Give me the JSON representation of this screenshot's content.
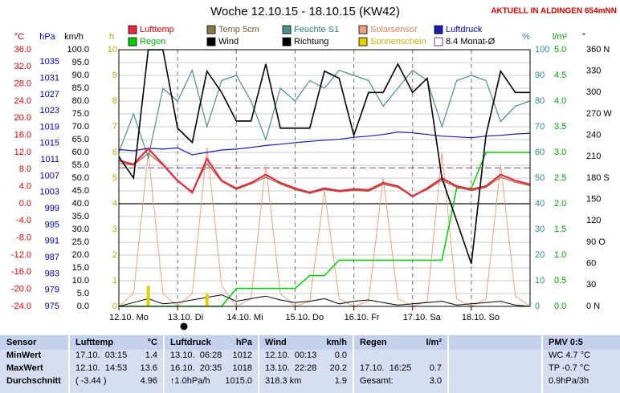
{
  "chart_data": {
    "type": "line",
    "title": "Woche 12.10.15 - 18.10.15 (KW42)",
    "note": "AKTUELL IN ALDINGEN 654mNN",
    "x": [
      0,
      6,
      12,
      18,
      24,
      30,
      36,
      42,
      48,
      54,
      60,
      66,
      72,
      78,
      84,
      90,
      96,
      102,
      108,
      114,
      120,
      126,
      132,
      138,
      144,
      150,
      156,
      162,
      168
    ],
    "xlim": [
      0,
      168
    ],
    "xticks": [
      {
        "value": 0,
        "label": "12.10. Mo"
      },
      {
        "value": 24,
        "label": "13.10. Di"
      },
      {
        "value": 48,
        "label": "14.10. Mi"
      },
      {
        "value": 72,
        "label": "15.10. Do"
      },
      {
        "value": 96,
        "label": "16.10. Fr"
      },
      {
        "value": 120,
        "label": "17.10. Sa"
      },
      {
        "value": 144,
        "label": "18.10. So"
      }
    ],
    "axes": [
      {
        "unit": "°C",
        "color": "#e00000",
        "lim": [
          -24,
          36
        ],
        "ticks": [
          {
            "value": 36,
            "label": "36.0"
          },
          {
            "value": 32,
            "label": "32.0"
          },
          {
            "value": 28,
            "label": "28.0"
          },
          {
            "value": 24,
            "label": "24.0"
          },
          {
            "value": 20,
            "label": "20.0"
          },
          {
            "value": 16,
            "label": "16.0"
          },
          {
            "value": 12,
            "label": "12.0"
          },
          {
            "value": 8,
            "label": "8.0"
          },
          {
            "value": 4,
            "label": "4.0"
          },
          {
            "value": 0,
            "label": "0.0"
          },
          {
            "value": -4,
            "label": "-4.0"
          },
          {
            "value": -8,
            "label": "-8.0"
          },
          {
            "value": -12,
            "label": "-12.0"
          },
          {
            "value": -16,
            "label": "-16.0"
          },
          {
            "value": -20,
            "label": "-20.0"
          },
          {
            "value": -24,
            "label": "-24.0"
          }
        ]
      },
      {
        "unit": "hPa",
        "color": "#0000c0",
        "lim": [
          975,
          1038
        ],
        "ticks": [
          1035,
          1031,
          1027,
          1023,
          1019,
          1015,
          1011,
          1007,
          1003,
          999,
          995,
          991,
          987,
          983,
          979,
          975
        ]
      },
      {
        "unit": "km/h",
        "color": "#000000",
        "lim": [
          0,
          100
        ],
        "grid": true,
        "ticks": [
          {
            "value": 100,
            "label": "100.0"
          },
          {
            "value": 95,
            "label": "95.0"
          },
          {
            "value": 90,
            "label": "90.0"
          },
          {
            "value": 85,
            "label": "85.0"
          },
          {
            "value": 80,
            "label": "80.0"
          },
          {
            "value": 75,
            "label": "75.0"
          },
          {
            "value": 70,
            "label": "70.0"
          },
          {
            "value": 65,
            "label": "65.0"
          },
          {
            "value": 60,
            "label": "60.0"
          },
          {
            "value": 55,
            "label": "55.0"
          },
          {
            "value": 50,
            "label": "50.0"
          },
          {
            "value": 45,
            "label": "45.0"
          },
          {
            "value": 40,
            "label": "40.0"
          },
          {
            "value": 35,
            "label": "35.0"
          },
          {
            "value": 30,
            "label": "30.0"
          },
          {
            "value": 25,
            "label": "25.0"
          },
          {
            "value": 20,
            "label": "20.0"
          },
          {
            "value": 15,
            "label": "15.0"
          },
          {
            "value": 10,
            "label": "10.0"
          },
          {
            "value": 5,
            "label": "5.0"
          },
          {
            "value": 0,
            "label": "0.0"
          }
        ]
      },
      {
        "unit": "h",
        "color": "#b0a800",
        "lim": [
          0,
          10
        ],
        "ticks": [
          10,
          9,
          8,
          7,
          6,
          5,
          4,
          3,
          2,
          1,
          0
        ]
      },
      {
        "unit": "%",
        "color": "#2a8a8a",
        "lim": [
          0,
          100
        ],
        "ticks": [
          100,
          90,
          80,
          70,
          60,
          50,
          40,
          30,
          20,
          10,
          0
        ]
      },
      {
        "unit": "l/m²",
        "color": "#00a000",
        "lim": [
          0,
          5
        ],
        "ticks": [
          {
            "value": 5,
            "label": "5.0"
          },
          4.5,
          {
            "value": 4,
            "label": "4.0"
          },
          3.5,
          {
            "value": 3,
            "label": "3.0"
          },
          2.5,
          {
            "value": 2,
            "label": "2.0"
          },
          1.5,
          {
            "value": 1,
            "label": "1.0"
          },
          0.5,
          {
            "value": 0,
            "label": "0.0"
          }
        ]
      },
      {
        "unit": "°",
        "color": "#000000",
        "lim": [
          0,
          360
        ],
        "ticks": [
          {
            "value": 360,
            "label": "360 N"
          },
          330,
          300,
          {
            "value": 270,
            "label": "270 W"
          },
          240,
          210,
          {
            "value": 180,
            "label": "180 S"
          },
          150,
          120,
          {
            "value": 90,
            "label": "90 O"
          },
          60,
          30,
          {
            "value": 0,
            "label": "0 N"
          }
        ]
      }
    ],
    "series": [
      {
        "name": "Lufttemp",
        "color": "#e8283c",
        "axis": 0,
        "width": 2.2,
        "values": [
          10.1,
          9.2,
          12.9,
          9.2,
          5.4,
          2.6,
          10.5,
          5.4,
          3.6,
          4.9,
          6.8,
          4.9,
          3.6,
          2.6,
          3.6,
          3.0,
          3.4,
          3.2,
          4.9,
          4.1,
          1.7,
          3.6,
          6.0,
          4.1,
          3.4,
          4.1,
          6.8,
          5.4,
          4.5
        ]
      },
      {
        "name": "Temp 5cm",
        "color": "#8a7a50",
        "axis": 0,
        "width": 1.2,
        "values": [
          9.5,
          9.0,
          11.8,
          9.0,
          5.2,
          2.9,
          9.4,
          5.2,
          3.3,
          4.6,
          6.2,
          4.6,
          3.3,
          2.4,
          3.3,
          2.8,
          3.1,
          2.9,
          4.5,
          3.8,
          1.8,
          3.3,
          5.5,
          3.8,
          3.1,
          3.8,
          6.2,
          5.0,
          4.2
        ]
      },
      {
        "name": "Feuchte S1",
        "color": "#4a9090",
        "axis": 4,
        "width": 1.2,
        "values": [
          60,
          75,
          58,
          85,
          80,
          92,
          70,
          88,
          90,
          80,
          65,
          85,
          80,
          88,
          85,
          92,
          90,
          88,
          78,
          85,
          92,
          88,
          70,
          88,
          90,
          88,
          72,
          78,
          80
        ]
      },
      {
        "name": "Solarsensor",
        "color": "#f0a080",
        "axis": 4,
        "width": 1,
        "values": [
          0,
          5,
          60,
          5,
          0,
          5,
          62,
          8,
          0,
          3,
          55,
          5,
          0,
          2,
          45,
          3,
          0,
          2,
          50,
          3,
          0,
          2,
          60,
          3,
          0,
          3,
          55,
          4,
          0
        ]
      },
      {
        "name": "Luftdruck",
        "color": "#1a1ab0",
        "axis": 1,
        "width": 1.2,
        "values": [
          1013.5,
          1013.2,
          1013.8,
          1013.6,
          1013.9,
          1012.2,
          1012.8,
          1013.4,
          1013.6,
          1014.0,
          1014.5,
          1014.8,
          1015.2,
          1015.5,
          1015.8,
          1016.0,
          1016.5,
          1016.8,
          1017.2,
          1017.8,
          1017.6,
          1017.2,
          1016.8,
          1016.6,
          1016.4,
          1016.8,
          1017.0,
          1017.3,
          1017.5
        ]
      },
      {
        "name": "Regen",
        "color": "#00d000",
        "axis": 5,
        "width": 1.5,
        "values": [
          0,
          0,
          0,
          0,
          0,
          0,
          0,
          0,
          0.35,
          0.35,
          0.35,
          0.35,
          0.35,
          0.6,
          0.6,
          0.9,
          0.9,
          0.9,
          0.9,
          0.9,
          0.9,
          0.9,
          0.9,
          2.3,
          2.3,
          3.0,
          3.0,
          3.0,
          3.0
        ]
      },
      {
        "name": "Wind",
        "color": "#000000",
        "axis": 2,
        "width": 1,
        "values": [
          0,
          1.5,
          3.0,
          1.0,
          1.5,
          2.5,
          3.5,
          4.5,
          2.0,
          3.0,
          4.0,
          2.5,
          1.5,
          2.0,
          3.0,
          1.0,
          2.0,
          2.5,
          1.5,
          0.5,
          1.0,
          1.5,
          2.0,
          0.5,
          1.0,
          1.5,
          2.0,
          0.5,
          0
        ]
      },
      {
        "name": "Richtung",
        "color": "#000000",
        "axis": 6,
        "width": 1.6,
        "values": [
          210,
          180,
          360,
          360,
          250,
          230,
          330,
          300,
          260,
          260,
          340,
          250,
          250,
          250,
          330,
          320,
          240,
          300,
          300,
          340,
          300,
          320,
          180,
          120,
          60,
          240,
          330,
          300,
          300
        ]
      },
      {
        "name": "Sonnenschein",
        "color": "#e0d000",
        "axis": 3,
        "type": "bar",
        "values": [
          0,
          0,
          0.8,
          0,
          0,
          0,
          0.5,
          0,
          0,
          0,
          0,
          0,
          0,
          0,
          0,
          0,
          0,
          0,
          0,
          0,
          0,
          0,
          0,
          0,
          0,
          0,
          0,
          0,
          0
        ]
      }
    ],
    "monthly_avg": {
      "name": "8.4 Monat-Ø",
      "value": 8.4,
      "axis": 0,
      "color": "#7a3a7a"
    }
  },
  "table": {
    "header": {
      "label": "Sensor",
      "columns": [
        [
          "Lufttemp",
          "°C"
        ],
        [
          "Luftdruck",
          "hPa"
        ],
        [
          "Wind",
          "km/h"
        ],
        [
          "Regen",
          "l/m²"
        ]
      ],
      "extra": "PMV 0:5"
    },
    "rows": [
      {
        "label": "MinWert",
        "cells": [
          [
            "17.10.  03:15",
            "1.4"
          ],
          [
            "13.10.  06:28",
            "1012"
          ],
          [
            "12.10.  00:13",
            "0.0"
          ]
        ],
        "extra": "WC 4.7 °C"
      },
      {
        "label": "MaxWert",
        "cells": [
          [
            "12.10.  14:53",
            "13.6"
          ],
          [
            "16.10.  20:35",
            "1018"
          ],
          [
            "13.10.  22:28",
            "20.2"
          ],
          [
            "17.10.  16:25",
            "0.7"
          ]
        ],
        "extra": "TP -0.7 °C"
      },
      {
        "label": "Durchschnitt",
        "cells": [
          [
            "( -3.44 )",
            "4.96"
          ],
          [
            "↑1.0hPa/h",
            "1015.0"
          ],
          [
            "318.3 km",
            "1.9"
          ],
          [
            "Gesamt:",
            "3.0"
          ]
        ],
        "extra": "0.9hPa/3h"
      }
    ]
  }
}
